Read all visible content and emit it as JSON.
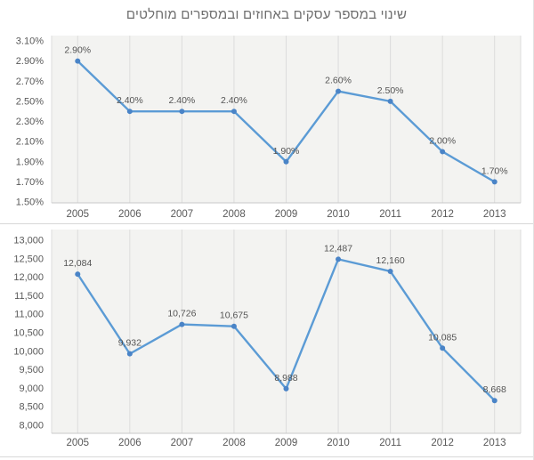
{
  "title": "שינוי במספר עסקים באחוזים ובמספרים מוחלטים",
  "colors": {
    "line": "#5B9BD5",
    "marker": "#4a84c7",
    "gridline": "#dcdcdc",
    "plot_bg": "#f3f3f1",
    "axis_line": "#c9c9c9",
    "tick_text": "#595959",
    "data_label_text": "#545454",
    "title_text": "#6e6e6e"
  },
  "chart_data": [
    {
      "type": "line",
      "name": "percent-change-by-year",
      "categories": [
        "2005",
        "2006",
        "2007",
        "2008",
        "2009",
        "2010",
        "2011",
        "2012",
        "2013"
      ],
      "values": [
        2.9,
        2.4,
        2.4,
        2.4,
        1.9,
        2.6,
        2.5,
        2.0,
        1.7
      ],
      "data_labels": [
        "2.90%",
        "2.40%",
        "2.40%",
        "2.40%",
        "1.90%",
        "2.60%",
        "2.50%",
        "2.00%",
        "1.70%"
      ],
      "title": "",
      "xlabel": "",
      "ylabel": "",
      "ylim": [
        1.5,
        3.1
      ],
      "ytick_step": 0.2,
      "ytick_labels": [
        "3.10%",
        "2.90%",
        "2.70%",
        "2.50%",
        "2.30%",
        "2.10%",
        "1.90%",
        "1.70%",
        "1.50%"
      ],
      "grid": "vertical-only",
      "legend": "none"
    },
    {
      "type": "line",
      "name": "absolute-change-by-year",
      "categories": [
        "2005",
        "2006",
        "2007",
        "2008",
        "2009",
        "2010",
        "2011",
        "2012",
        "2013"
      ],
      "values": [
        12084,
        9932,
        10726,
        10675,
        8988,
        12487,
        12160,
        10085,
        8668
      ],
      "data_labels": [
        "12,084",
        "9,932",
        "10,726",
        "10,675",
        "8,988",
        "12,487",
        "12,160",
        "10,085",
        "8,668"
      ],
      "title": "",
      "xlabel": "",
      "ylabel": "",
      "ylim": [
        8000,
        13000
      ],
      "ytick_step": 500,
      "ytick_labels": [
        "13,000",
        "12,500",
        "12,000",
        "11,500",
        "11,000",
        "10,500",
        "10,000",
        "9,500",
        "9,000",
        "8,500",
        "8,000"
      ],
      "grid": "vertical-only",
      "legend": "none"
    }
  ]
}
